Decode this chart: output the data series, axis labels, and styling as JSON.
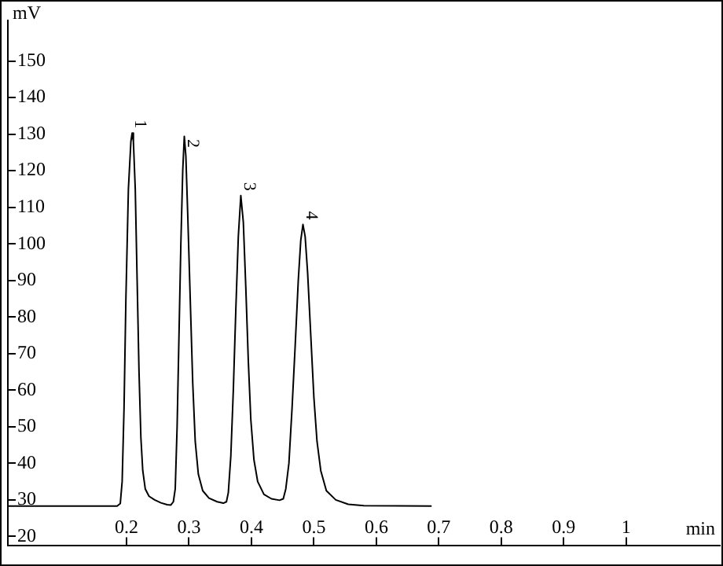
{
  "chart_data": {
    "type": "line",
    "xlabel": "min",
    "ylabel": "mV",
    "xlim": [
      0.01,
      1.15
    ],
    "ylim": [
      17.6,
      161
    ],
    "xticks": [
      0.2,
      0.3,
      0.4,
      0.5,
      0.6,
      0.7,
      0.8,
      0.9,
      1
    ],
    "yticks": [
      20,
      30,
      40,
      50,
      60,
      70,
      80,
      90,
      100,
      110,
      120,
      130,
      140,
      150
    ],
    "grid": false,
    "legend": false,
    "marker": "none",
    "line_style": "solid",
    "series": [
      {
        "color": "#000000",
        "x": [
          0.01,
          0.185,
          0.19,
          0.193,
          0.196,
          0.199,
          0.203,
          0.207,
          0.209,
          0.211,
          0.214,
          0.217,
          0.22,
          0.223,
          0.226,
          0.23,
          0.236,
          0.245,
          0.255,
          0.265,
          0.271,
          0.275,
          0.278,
          0.281,
          0.284,
          0.287,
          0.29,
          0.2925,
          0.295,
          0.298,
          0.302,
          0.306,
          0.31,
          0.315,
          0.322,
          0.332,
          0.345,
          0.355,
          0.36,
          0.363,
          0.367,
          0.371,
          0.375,
          0.379,
          0.383,
          0.387,
          0.391,
          0.395,
          0.399,
          0.404,
          0.41,
          0.42,
          0.432,
          0.445,
          0.451,
          0.455,
          0.46,
          0.465,
          0.47,
          0.475,
          0.479,
          0.4825,
          0.486,
          0.49,
          0.495,
          0.5,
          0.505,
          0.511,
          0.52,
          0.535,
          0.555,
          0.58,
          0.6875
        ],
        "values": [
          28.3,
          28.3,
          29,
          35,
          55,
          85,
          115,
          128,
          130.3,
          128,
          115,
          90,
          65,
          47,
          38,
          33,
          31,
          30,
          29.2,
          28.7,
          28.6,
          29.5,
          33,
          50,
          75,
          100,
          120,
          129.4,
          124,
          108,
          85,
          62,
          46,
          37,
          32.5,
          30.5,
          29.5,
          29.1,
          29.5,
          32,
          42,
          60,
          82,
          102,
          113.2,
          106,
          88,
          68,
          52,
          41,
          35,
          31.5,
          30.3,
          29.9,
          30.3,
          33,
          40,
          55,
          72,
          90,
          101,
          105.3,
          102,
          92,
          75,
          58,
          46,
          38,
          32.5,
          30,
          28.8,
          28.4,
          28.3
        ]
      }
    ],
    "annotations": [
      {
        "text": "1",
        "x": 0.209,
        "y": 130.3
      },
      {
        "text": "2",
        "x": 0.2925,
        "y": 125
      },
      {
        "text": "3",
        "x": 0.383,
        "y": 113.2
      },
      {
        "text": "4",
        "x": 0.4825,
        "y": 105.3
      }
    ]
  }
}
